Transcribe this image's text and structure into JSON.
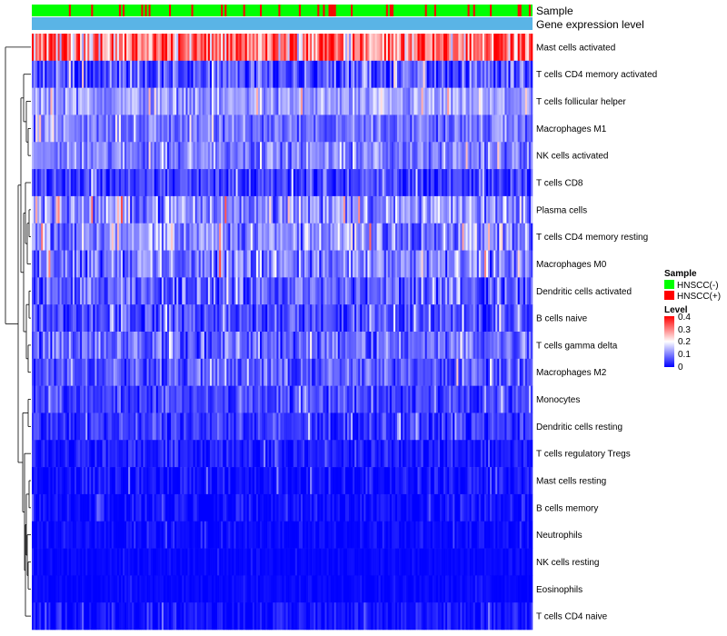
{
  "chart_data": {
    "type": "heatmap",
    "annotation_tracks": [
      "Sample",
      "Gene expression level"
    ],
    "rows": [
      "Mast cells activated",
      "T cells CD4 memory activated",
      "T cells follicular helper",
      "Macrophages M1",
      "NK cells activated",
      "T cells CD8",
      "Plasma cells",
      "T cells CD4 memory resting",
      "Macrophages M0",
      "Dendritic cells activated",
      "B cells naive",
      "T cells gamma delta",
      "Macrophages M2",
      "Monocytes",
      "Dendritic cells resting",
      "T cells regulatory  Tregs",
      "Mast cells resting",
      "B cells memory",
      "Neutrophils",
      "NK cells resting",
      "Eosinophils",
      "T cells CD4 naive"
    ],
    "row_mean_levels": [
      0.3,
      0.06,
      0.12,
      0.09,
      0.1,
      0.05,
      0.11,
      0.11,
      0.1,
      0.07,
      0.06,
      0.08,
      0.07,
      0.05,
      0.04,
      0.02,
      0.01,
      0.01,
      0.005,
      0.005,
      0.005,
      0.01
    ],
    "row_spread": [
      0.12,
      0.07,
      0.05,
      0.05,
      0.05,
      0.05,
      0.07,
      0.07,
      0.07,
      0.06,
      0.05,
      0.06,
      0.05,
      0.04,
      0.04,
      0.03,
      0.03,
      0.03,
      0.02,
      0.01,
      0.01,
      0.03
    ],
    "n_samples": 270,
    "legend": {
      "sample": {
        "title": "Sample",
        "entries": [
          {
            "label": "HNSCC(-)",
            "color": "#00ff00"
          },
          {
            "label": "HNSCC(+)",
            "color": "#ff0000"
          }
        ]
      },
      "level": {
        "title": "Level",
        "ticks": [
          "0.4",
          "0.3",
          "0.2",
          "0.1",
          "0"
        ],
        "tick_values": [
          0.4,
          0.3,
          0.2,
          0.1,
          0
        ],
        "range": [
          0,
          0.4
        ],
        "colors": [
          "#0000ff",
          "#ffffff",
          "#ff0000"
        ]
      }
    },
    "gene_expression_color": "#5ab4e6",
    "dendrogram": "row clustering (left)"
  }
}
